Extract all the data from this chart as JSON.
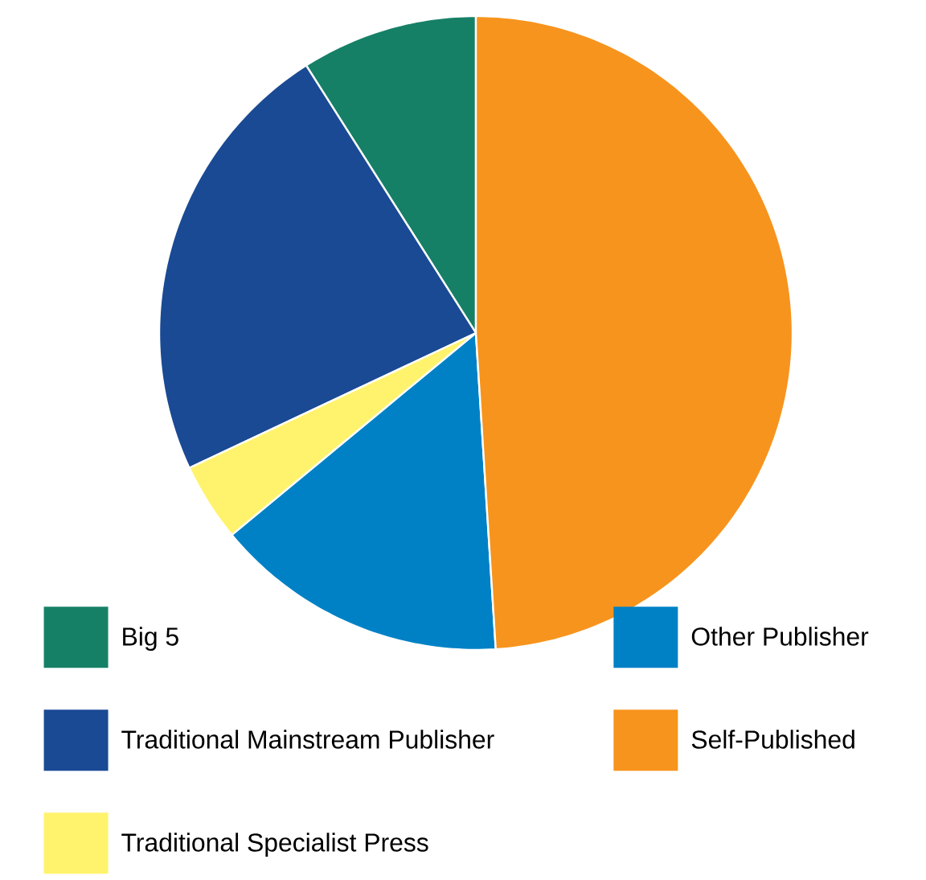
{
  "chart_data": {
    "type": "pie",
    "categories": [
      "Big 5",
      "Traditional Mainstream Publisher",
      "Traditional Specialist Press",
      "Other Publisher",
      "Self-Published"
    ],
    "values": [
      9,
      23,
      4,
      15,
      49
    ],
    "colors": [
      "#168067",
      "#1a4a94",
      "#fff36d",
      "#0081c6",
      "#f7941d"
    ],
    "legend": "bottom"
  }
}
